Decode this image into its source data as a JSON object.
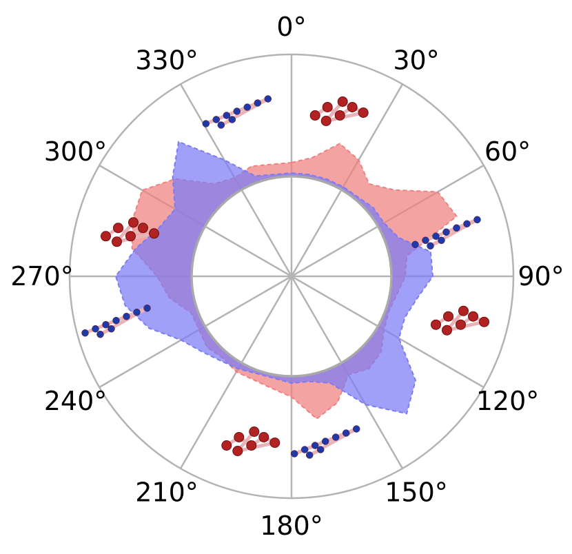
{
  "chart_data": {
    "type": "area",
    "projection": "polar",
    "theta_direction": "clockwise",
    "theta_zero_location": "top",
    "theta_unit": "degrees",
    "theta_tick_labels": [
      "0°",
      "30°",
      "60°",
      "90°",
      "120°",
      "150°",
      "180°",
      "210°",
      "240°",
      "270°",
      "300°",
      "330°"
    ],
    "theta_ticks": [
      0,
      30,
      60,
      90,
      120,
      150,
      180,
      210,
      240,
      270,
      300,
      330
    ],
    "radial_ticks_shown": false,
    "grid": true,
    "legend": "none",
    "inner_circle": true,
    "series": [
      {
        "color": "#f08080",
        "theta": [
          0,
          10,
          20,
          30,
          40,
          50,
          60,
          70,
          80,
          90,
          100,
          110,
          120,
          130,
          140,
          150,
          160,
          170,
          180,
          190,
          200,
          210,
          220,
          230,
          240,
          250,
          260,
          270,
          280,
          290,
          300,
          310,
          320,
          330,
          340,
          350,
          360
        ],
        "r": [
          0.04,
          0.06,
          0.12,
          0.1,
          0.06,
          0.1,
          0.2,
          0.22,
          0.05,
          0.04,
          0.02,
          0.01,
          0.02,
          0.05,
          0.06,
          0.04,
          0.1,
          0.13,
          0.06,
          0.04,
          0.03,
          0.03,
          0.02,
          0.03,
          0.02,
          0.02,
          0.07,
          0.1,
          0.18,
          0.2,
          0.21,
          0.15,
          0.06,
          0.04,
          0.05,
          0.04,
          0.04
        ]
      },
      {
        "color": "#7b7bf5",
        "theta": [
          0,
          10,
          20,
          30,
          40,
          50,
          60,
          70,
          80,
          90,
          100,
          110,
          120,
          130,
          140,
          150,
          160,
          170,
          180,
          190,
          200,
          210,
          220,
          230,
          240,
          250,
          260,
          270,
          280,
          290,
          300,
          310,
          320,
          330,
          340,
          350,
          360
        ],
        "r": [
          0.01,
          0.01,
          0.01,
          0.01,
          0.01,
          0.02,
          0.02,
          0.04,
          0.12,
          0.12,
          0.08,
          0.06,
          0.07,
          0.18,
          0.23,
          0.14,
          0.04,
          0.02,
          0.02,
          0.01,
          0.01,
          0.02,
          0.03,
          0.05,
          0.08,
          0.15,
          0.2,
          0.22,
          0.17,
          0.12,
          0.1,
          0.16,
          0.22,
          0.1,
          0.02,
          0.01,
          0.01
        ]
      }
    ],
    "molecule_icons": [
      {
        "angle": 15,
        "color": "red"
      },
      {
        "angle": 75,
        "color": "blue"
      },
      {
        "angle": 105,
        "color": "red"
      },
      {
        "angle": 165,
        "color": "blue"
      },
      {
        "angle": 195,
        "color": "red"
      },
      {
        "angle": 255,
        "color": "blue"
      },
      {
        "angle": 285,
        "color": "red"
      },
      {
        "angle": 345,
        "color": "blue"
      }
    ]
  }
}
